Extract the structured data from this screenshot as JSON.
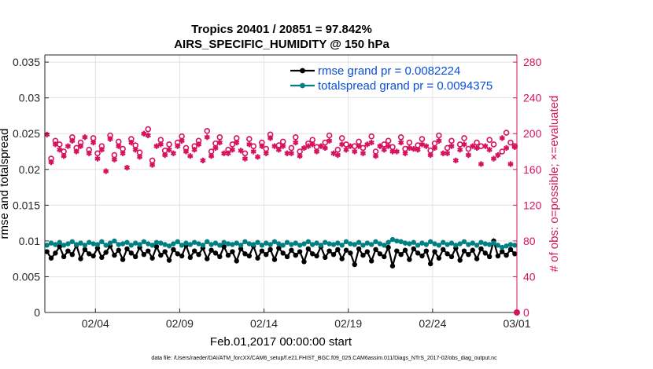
{
  "chart_data": {
    "type": "line",
    "title_line1": "Tropics 20401 / 20851 = 97.842%",
    "title_line2": "AIRS_SPECIFIC_HUMIDITY @ 150 hPa",
    "xlabel": "Feb.01,2017 00:00:00 start",
    "ylabel_left": "rmse and totalspread",
    "ylabel_right": "# of obs: o=possible; ×=evaluated",
    "footnote": "data file: /Users/raeder/DAI/ATM_forcXX/CAM6_setup/f.e21.FHIST_BGC.f09_025.CAM6assim.011/Diags_NTrS_2017-02/obs_diag_output.nc",
    "xlim": [
      0,
      28
    ],
    "x_ticks": [
      {
        "x": 3,
        "label": "02/04"
      },
      {
        "x": 8,
        "label": "02/09"
      },
      {
        "x": 13,
        "label": "02/14"
      },
      {
        "x": 18,
        "label": "02/19"
      },
      {
        "x": 23,
        "label": "02/24"
      },
      {
        "x": 28,
        "label": "03/01"
      }
    ],
    "ylim_left": [
      0,
      0.036
    ],
    "ylim_right": [
      0,
      288
    ],
    "y_ticks_left": [
      "0",
      "0.005",
      "0.01",
      "0.015",
      "0.02",
      "0.025",
      "0.03",
      "0.035"
    ],
    "y_ticks_right": [
      "0",
      "40",
      "80",
      "120",
      "160",
      "200",
      "240",
      "280"
    ],
    "grid": true,
    "legend_position": "top-right",
    "colors": {
      "rmse": "#000000",
      "totalspread": "#008080",
      "obs": "#d6125e",
      "legend_text": "#0a4fd6"
    },
    "series": [
      {
        "name": "rmse grand pr = 0.0082224",
        "axis": "left",
        "marker": "filled-circle",
        "values": [
          0.0085,
          0.0076,
          0.0083,
          0.0092,
          0.0078,
          0.0086,
          0.0081,
          0.0094,
          0.0075,
          0.0088,
          0.0082,
          0.0079,
          0.009,
          0.0077,
          0.0084,
          0.0093,
          0.008,
          0.0087,
          0.0074,
          0.0089,
          0.0083,
          0.0078,
          0.0091,
          0.0081,
          0.0086,
          0.0076,
          0.0092,
          0.008,
          0.0085,
          0.0073,
          0.0088,
          0.0082,
          0.0079,
          0.0094,
          0.0077,
          0.0086,
          0.0081,
          0.009,
          0.0075,
          0.0087,
          0.0083,
          0.0078,
          0.0092,
          0.008,
          0.0085,
          0.0072,
          0.0089,
          0.0082,
          0.0079,
          0.0093,
          0.0076,
          0.0086,
          0.0081,
          0.0088,
          0.0074,
          0.009,
          0.0083,
          0.0078,
          0.0087,
          0.008,
          0.0085,
          0.0071,
          0.0089,
          0.0082,
          0.0079,
          0.0092,
          0.0077,
          0.0086,
          0.0081,
          0.0088,
          0.0075,
          0.0087,
          0.0083,
          0.0067,
          0.0089,
          0.008,
          0.0085,
          0.0072,
          0.0088,
          0.0082,
          0.0078,
          0.0091,
          0.0065,
          0.0086,
          0.0081,
          0.0087,
          0.0074,
          0.0089,
          0.0083,
          0.0079,
          0.0086,
          0.0068,
          0.0085,
          0.0076,
          0.0088,
          0.0082,
          0.0078,
          0.009,
          0.0073,
          0.0086,
          0.0081,
          0.0087,
          0.0075,
          0.0089,
          0.0083,
          0.0078,
          0.01,
          0.0079,
          0.0085,
          0.008,
          0.0088,
          0.0082
        ]
      },
      {
        "name": "totalspread grand pr = 0.0094375",
        "axis": "left",
        "marker": "filled-circle",
        "values": [
          0.0094,
          0.0097,
          0.0095,
          0.0098,
          0.0094,
          0.0096,
          0.0099,
          0.0095,
          0.0097,
          0.0094,
          0.0098,
          0.0096,
          0.0095,
          0.0099,
          0.0094,
          0.0097,
          0.01,
          0.0095,
          0.0096,
          0.0098,
          0.0094,
          0.0097,
          0.0095,
          0.0099,
          0.0096,
          0.0094,
          0.0098,
          0.0097,
          0.0095,
          0.0093,
          0.0096,
          0.0099,
          0.0094,
          0.0097,
          0.0095,
          0.0098,
          0.0096,
          0.0094,
          0.0099,
          0.0095,
          0.0097,
          0.0094,
          0.0098,
          0.0096,
          0.0095,
          0.0097,
          0.0094,
          0.0099,
          0.0096,
          0.0095,
          0.0098,
          0.0094,
          0.0097,
          0.0095,
          0.0099,
          0.0096,
          0.0094,
          0.0098,
          0.0095,
          0.0097,
          0.0094,
          0.0096,
          0.0099,
          0.0095,
          0.0097,
          0.0094,
          0.0098,
          0.0096,
          0.0095,
          0.0097,
          0.0094,
          0.0099,
          0.0096,
          0.0095,
          0.0098,
          0.0094,
          0.0097,
          0.0095,
          0.0099,
          0.0096,
          0.0094,
          0.0098,
          0.0102,
          0.01,
          0.0099,
          0.0097,
          0.0096,
          0.0098,
          0.0094,
          0.0097,
          0.0095,
          0.0099,
          0.0096,
          0.0094,
          0.0098,
          0.0095,
          0.0097,
          0.0094,
          0.0096,
          0.0099,
          0.0095,
          0.0097,
          0.0094,
          0.0098,
          0.0096,
          0.0095,
          0.0097,
          0.0094,
          0.0091,
          0.0093,
          0.0095,
          0.0094
        ]
      },
      {
        "name": "possible",
        "axis": "right",
        "marker": "open-circle",
        "values": [
          null,
          172,
          192,
          188,
          180,
          null,
          196,
          184,
          190,
          null,
          182,
          195,
          178,
          186,
          null,
          198,
          176,
          191,
          183,
          null,
          194,
          187,
          179,
          null,
          205,
          170,
          null,
          193,
          181,
          188,
          null,
          190,
          197,
          184,
          null,
          186,
          192,
          null,
          203,
          180,
          189,
          196,
          null,
          182,
          188,
          195,
          null,
          178,
          194,
          186,
          null,
          190,
          183,
          199,
          null,
          187,
          191,
          null,
          184,
          196,
          180,
          null,
          189,
          193,
          185,
          null,
          190,
          198,
          null,
          182,
          195,
          188,
          null,
          186,
          191,
          184,
          null,
          197,
          180,
          null,
          188,
          192,
          185,
          null,
          196,
          183,
          190,
          null,
          187,
          194,
          null,
          181,
          189,
          198,
          null,
          184,
          192,
          null,
          188,
          195,
          183,
          null,
          190,
          186,
          null,
          193,
          188,
          null,
          180,
          201,
          190,
          186
        ]
      },
      {
        "name": "evaluated",
        "axis": "right",
        "marker": "asterisk",
        "values": [
          199,
          168,
          188,
          182,
          175,
          186,
          192,
          180,
          186,
          196,
          178,
          190,
          172,
          182,
          158,
          194,
          171,
          186,
          178,
          162,
          190,
          182,
          174,
          200,
          198,
          165,
          186,
          188,
          176,
          182,
          178,
          186,
          192,
          180,
          175,
          182,
          188,
          170,
          196,
          175,
          184,
          190,
          178,
          178,
          182,
          190,
          181,
          172,
          188,
          180,
          174,
          186,
          178,
          195,
          186,
          182,
          186,
          178,
          178,
          190,
          175,
          184,
          186,
          188,
          180,
          186,
          184,
          192,
          178,
          176,
          188,
          182,
          186,
          180,
          186,
          178,
          188,
          190,
          175,
          186,
          182,
          186,
          180,
          180,
          190,
          178,
          184,
          183,
          182,
          188,
          186,
          176,
          184,
          192,
          178,
          178,
          186,
          170,
          182,
          188,
          176,
          186,
          184,
          166,
          186,
          182,
          172,
          176,
          195,
          184,
          166,
          185
        ]
      }
    ]
  }
}
